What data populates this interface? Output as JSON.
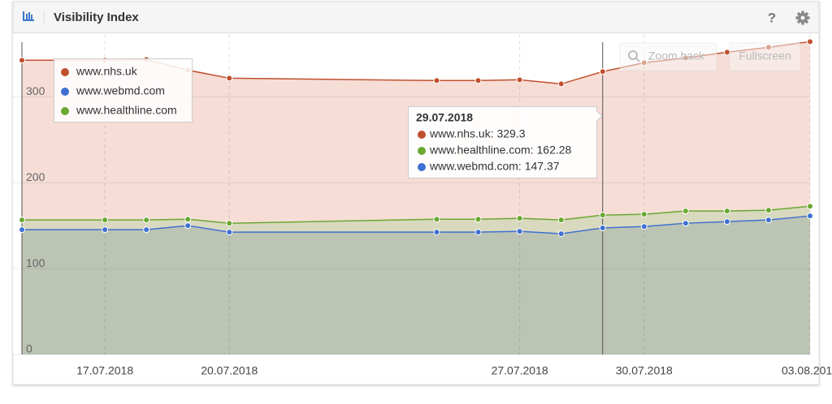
{
  "header": {
    "title": "Visibility Index",
    "help": "?"
  },
  "buttons": {
    "zoom_back": "Zoom back",
    "fullscreen": "Fullscreen"
  },
  "chart_data": {
    "type": "area",
    "x": [
      "15.07.2018",
      "17.07.2018",
      "18.07.2018",
      "19.07.2018",
      "20.07.2018",
      "25.07.2018",
      "26.07.2018",
      "27.07.2018",
      "28.07.2018",
      "29.07.2018",
      "30.07.2018",
      "31.07.2018",
      "01.08.2018",
      "02.08.2018",
      "03.08.2018"
    ],
    "series": [
      {
        "name": "www.nhs.uk",
        "color": "#c0502e",
        "fill": "#f6ddd6",
        "values": [
          342.5,
          342.5,
          343.4,
          331,
          321.7,
          318.9,
          318.9,
          319.8,
          315,
          329.3,
          339.6,
          345.3,
          351.9,
          357.5,
          364.2
        ]
      },
      {
        "name": "www.webmd.com",
        "color": "#3f6fd1",
        "fill": "#bcc4b4",
        "values": [
          145.3,
          145.3,
          145.3,
          150,
          142.5,
          142.5,
          142.5,
          143.4,
          140.6,
          147.37,
          149,
          152.8,
          154.7,
          156.6,
          161.3
        ]
      },
      {
        "name": "www.healthline.com",
        "color": "#6aa832",
        "fill": "#d8d9bf",
        "values": [
          156.6,
          156.6,
          156.6,
          157.5,
          152.8,
          157.5,
          157.5,
          158.5,
          156.6,
          162.28,
          163.2,
          167,
          167,
          168,
          172.6
        ]
      }
    ],
    "ylim": [
      0,
      373
    ],
    "yticks": [
      0,
      100,
      200,
      300
    ],
    "xticks": [
      "17.07.2018",
      "20.07.2018",
      "27.07.2018",
      "30.07.2018",
      "03.08.2018"
    ],
    "grid": true,
    "legend": "top-left",
    "tooltip": {
      "title": "29.07.2018",
      "lines": [
        {
          "text": "www.nhs.uk: 329.3",
          "color": "#c0502e"
        },
        {
          "text": "www.healthline.com: 162.28",
          "color": "#6aa832"
        },
        {
          "text": "www.webmd.com: 147.37",
          "color": "#3f6fd1"
        }
      ]
    }
  }
}
